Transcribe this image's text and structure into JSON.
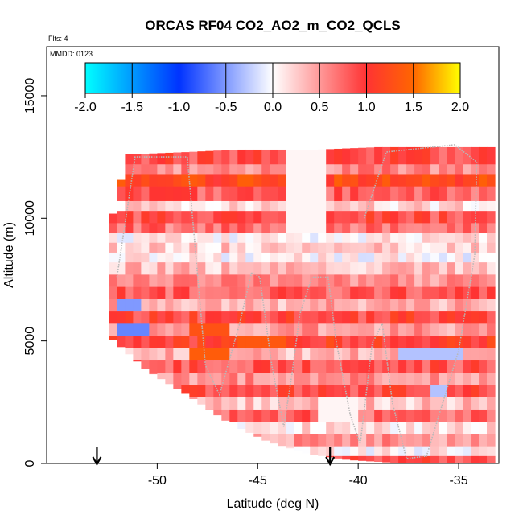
{
  "chart_data": {
    "type": "heatmap",
    "title": "ORCAS RF04 CO2_AO2_m_CO2_QCLS",
    "annotations": [
      "Flts: 4",
      "MMDD: 0123"
    ],
    "xlabel": "Latitude (deg N)",
    "ylabel": "Altitude (m)",
    "xlim": [
      -55.5,
      -33.0
    ],
    "ylim": [
      0,
      17000
    ],
    "xticks": [
      -50,
      -45,
      -40,
      -35
    ],
    "xtick_labels": [
      "-50",
      "-45",
      "-40",
      "-35"
    ],
    "yticks": [
      0,
      5000,
      10000,
      15000
    ],
    "ytick_labels": [
      "0",
      "5000",
      "10000",
      "15000"
    ],
    "colorbar": {
      "range": [
        -2.0,
        2.0
      ],
      "ticks": [
        -2.0,
        -1.5,
        -1.0,
        -0.5,
        0.0,
        0.5,
        1.0,
        1.5,
        2.0
      ],
      "tick_labels": [
        "-2.0",
        "-1.5",
        "-1.0",
        "-0.5",
        "0.0",
        "0.5",
        "1.0",
        "1.5",
        "2.0"
      ],
      "colors": [
        "#00ffff",
        "#0033ff",
        "#ffffff",
        "#ff3333",
        "#ff6600",
        "#ffff00"
      ]
    },
    "arrows_latitude": [
      -53.0,
      -41.4
    ],
    "flight_track": [
      [
        -52.0,
        7600
      ],
      [
        -51.1,
        12500
      ],
      [
        -48.5,
        12500
      ],
      [
        -47.6,
        4000
      ],
      [
        -46.9,
        2800
      ],
      [
        -45.9,
        5700
      ],
      [
        -45.3,
        7800
      ],
      [
        -44.9,
        7600
      ],
      [
        -44.3,
        4000
      ],
      [
        -43.7,
        1500
      ],
      [
        -43.3,
        3600
      ],
      [
        -42.9,
        6100
      ],
      [
        -42.3,
        7600
      ],
      [
        -41.5,
        7600
      ],
      [
        -41.1,
        5000
      ],
      [
        -40.4,
        2000
      ],
      [
        -39.9,
        800
      ],
      [
        -39.3,
        4900
      ],
      [
        -38.8,
        5700
      ],
      [
        -38.3,
        2500
      ],
      [
        -37.6,
        200
      ],
      [
        -36.6,
        300
      ],
      [
        -35.0,
        4600
      ],
      [
        -34.2,
        8500
      ],
      [
        -34.1,
        12300
      ],
      [
        -35.2,
        13000
      ],
      [
        -38.6,
        12700
      ],
      [
        -39.7,
        10000
      ]
    ],
    "field": {
      "lat_range": [
        -52.4,
        -33.6
      ],
      "lower_boundary": [
        [
          -52.4,
          5200
        ],
        [
          -50.5,
          3800
        ],
        [
          -48.5,
          2800
        ],
        [
          -46.5,
          1700
        ],
        [
          -44.5,
          900
        ],
        [
          -42.5,
          400
        ],
        [
          -40.5,
          150
        ],
        [
          -38.5,
          50
        ],
        [
          -36.5,
          0
        ],
        [
          -35.6,
          0
        ]
      ],
      "upper_boundary": [
        [
          -52.4,
          9500
        ],
        [
          -51.5,
          12600
        ],
        [
          -48.5,
          12700
        ],
        [
          -46.0,
          12800
        ],
        [
          -42.0,
          12800
        ],
        [
          -39.0,
          12900
        ],
        [
          -36.0,
          13000
        ],
        [
          -33.7,
          12900
        ]
      ],
      "layers": [
        {
          "alt": [
            12200,
            12900
          ],
          "value": 0.9
        },
        {
          "alt": [
            11800,
            12200
          ],
          "value": 0.6
        },
        {
          "alt": [
            11300,
            11800
          ],
          "value": 1.2
        },
        {
          "alt": [
            10700,
            11300
          ],
          "value": 0.8
        },
        {
          "alt": [
            10300,
            10700
          ],
          "value": 0.2
        },
        {
          "alt": [
            9800,
            10300
          ],
          "value": 0.9
        },
        {
          "alt": [
            9400,
            9800
          ],
          "value": 0.7
        },
        {
          "alt": [
            9000,
            9400
          ],
          "value": 0.1
        },
        {
          "alt": [
            8600,
            9000
          ],
          "value": 0.25
        },
        {
          "alt": [
            8200,
            8600
          ],
          "value": 0.05
        },
        {
          "alt": [
            7700,
            8200
          ],
          "value": 0.3
        },
        {
          "alt": [
            7200,
            7700
          ],
          "value": 0.55
        },
        {
          "alt": [
            6700,
            7200
          ],
          "value": 0.8
        },
        {
          "alt": [
            6200,
            6700
          ],
          "value": 0.4
        },
        {
          "alt": [
            5700,
            6200
          ],
          "value": 0.95
        },
        {
          "alt": [
            5200,
            5700
          ],
          "value": 0.5
        },
        {
          "alt": [
            4700,
            5200
          ],
          "value": 1.05
        },
        {
          "alt": [
            4200,
            4700
          ],
          "value": 0.35
        },
        {
          "alt": [
            3700,
            4200
          ],
          "value": 0.85
        },
        {
          "alt": [
            3200,
            3700
          ],
          "value": 0.55
        },
        {
          "alt": [
            2700,
            3200
          ],
          "value": 0.9
        },
        {
          "alt": [
            2200,
            2700
          ],
          "value": 0.3
        },
        {
          "alt": [
            1700,
            2200
          ],
          "value": 0.75
        },
        {
          "alt": [
            1200,
            1700
          ],
          "value": 0.15
        },
        {
          "alt": [
            700,
            1200
          ],
          "value": 0.5
        },
        {
          "alt": [
            300,
            700
          ],
          "value": 0.1
        },
        {
          "alt": [
            0,
            300
          ],
          "value": 0.9
        }
      ],
      "patches": [
        {
          "lat": [
            -52.0,
            -50.5
          ],
          "alt": [
            5300,
            5600
          ],
          "value": -0.6
        },
        {
          "lat": [
            -52.0,
            -51.0
          ],
          "alt": [
            6300,
            6600
          ],
          "value": -0.5
        },
        {
          "lat": [
            -49.0,
            -47.0
          ],
          "alt": [
            9700,
            10000
          ],
          "value": -0.3
        },
        {
          "lat": [
            -37.0,
            -35.5
          ],
          "alt": [
            3600,
            3900
          ],
          "value": -0.6
        },
        {
          "lat": [
            -36.5,
            -35.5
          ],
          "alt": [
            2500,
            3300
          ],
          "value": -0.3
        },
        {
          "lat": [
            -38.0,
            -35.0
          ],
          "alt": [
            4400,
            4700
          ],
          "value": -0.3
        },
        {
          "lat": [
            -48.5,
            -46.5
          ],
          "alt": [
            4000,
            4800
          ],
          "value": 1.4
        },
        {
          "lat": [
            -46.0,
            -43.5
          ],
          "alt": [
            4700,
            5300
          ],
          "value": 1.35
        },
        {
          "lat": [
            -49.5,
            -47.5
          ],
          "alt": [
            11100,
            11500
          ],
          "value": 1.4
        },
        {
          "lat": [
            -48.5,
            -46.5
          ],
          "alt": [
            5100,
            5500
          ],
          "value": 1.3
        },
        {
          "lat": [
            -43.5,
            -41.5
          ],
          "alt": [
            9400,
            12800
          ],
          "value": 0.05
        },
        {
          "lat": [
            -42.0,
            -40.0
          ],
          "alt": [
            1500,
            2700
          ],
          "value": 0.05
        }
      ]
    }
  }
}
